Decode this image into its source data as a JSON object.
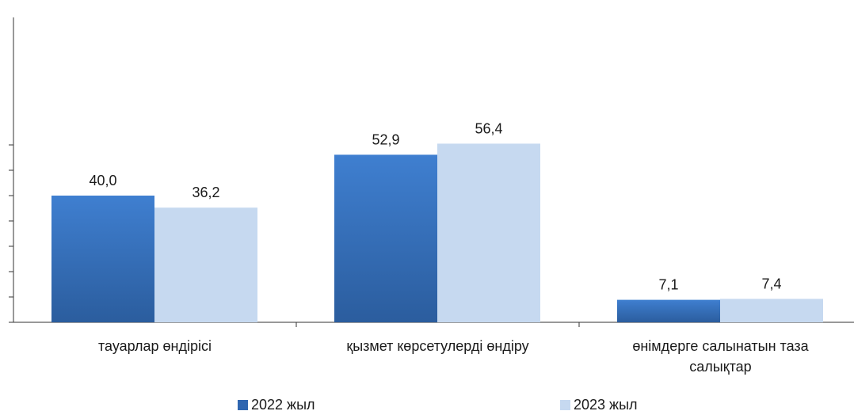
{
  "chart_data": {
    "type": "bar",
    "categories": [
      [
        "тауарлар өндірісі"
      ],
      [
        "қызмет көрсетулерді өндіру"
      ],
      [
        "өнімдерге салынатын  таза",
        "салықтар"
      ]
    ],
    "series": [
      {
        "name": "2022 жыл",
        "values": [
          40.0,
          52.9,
          7.1
        ],
        "labels": [
          "40,0",
          "52,9",
          "7,1"
        ],
        "color": "#3a74c0",
        "color_dark": "#2a5a9a"
      },
      {
        "name": "2023 жыл",
        "values": [
          36.2,
          56.4,
          7.4
        ],
        "labels": [
          "36,2",
          "56,4",
          "7,4"
        ],
        "color": "#c6d9f0"
      }
    ],
    "ylim": [
      0,
      60
    ],
    "y_tick_step": 8,
    "y_tick_labels_shown": false,
    "grid": false,
    "legend_position": "bottom",
    "title": "",
    "xlabel": "",
    "ylabel": ""
  }
}
